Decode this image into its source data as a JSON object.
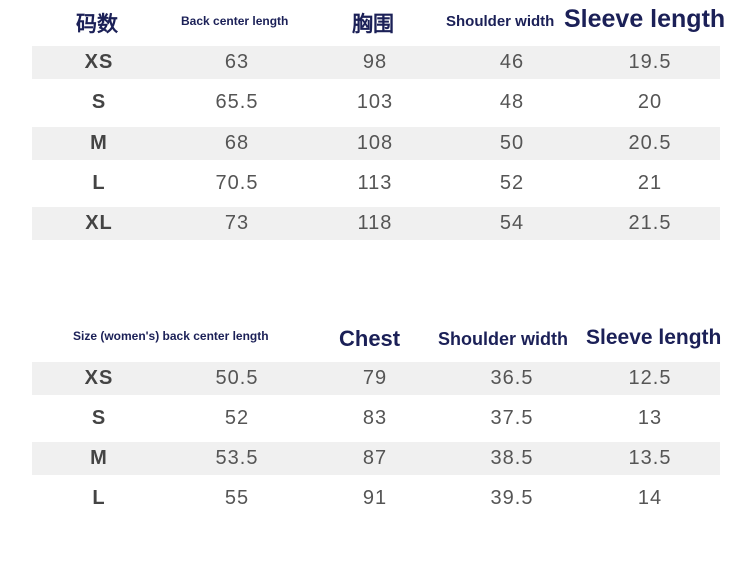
{
  "men_table": {
    "headers": {
      "size": "码数",
      "back_center_length": "Back center length",
      "chest": "胸围",
      "shoulder_width": "Shoulder width",
      "sleeve_length": "Sleeve length"
    },
    "rows": [
      [
        "XS",
        "63",
        "98",
        "46",
        "19.5"
      ],
      [
        "S",
        "65.5",
        "103",
        "48",
        "20"
      ],
      [
        "M",
        "68",
        "108",
        "50",
        "20.5"
      ],
      [
        "L",
        "70.5",
        "113",
        "52",
        "21"
      ],
      [
        "XL",
        "73",
        "118",
        "54",
        "21.5"
      ]
    ]
  },
  "women_table": {
    "headers": {
      "size_back_center_length": "Size (women's) back center length",
      "chest": "Chest",
      "shoulder_width": "Shoulder width",
      "sleeve_length": "Sleeve length"
    },
    "rows": [
      [
        "XS",
        "50.5",
        "79",
        "36.5",
        "12.5"
      ],
      [
        "S",
        "52",
        "83",
        "37.5",
        "13"
      ],
      [
        "M",
        "53.5",
        "87",
        "38.5",
        "13.5"
      ],
      [
        "L",
        "55",
        "91",
        "39.5",
        "14"
      ]
    ]
  }
}
